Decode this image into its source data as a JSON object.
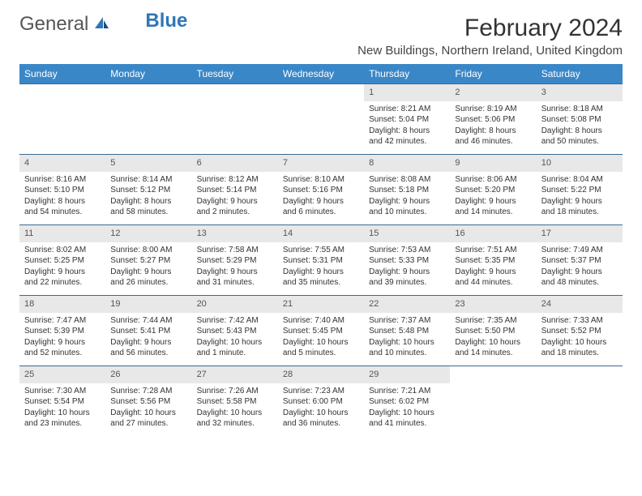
{
  "brand": {
    "part1": "General",
    "part2": "Blue"
  },
  "title": "February 2024",
  "location": "New Buildings, Northern Ireland, United Kingdom",
  "colors": {
    "header_bg": "#3a87c8",
    "header_text": "#ffffff",
    "date_bar_bg": "#e8e8e8",
    "week_border": "#3a6a95",
    "logo_blue": "#2f77b8",
    "body_text": "#333333",
    "page_bg": "#ffffff"
  },
  "typography": {
    "title_fontsize": 30,
    "location_fontsize": 15,
    "dayheader_fontsize": 12,
    "date_fontsize": 11,
    "cell_fontsize": 10
  },
  "layout": {
    "columns": 7,
    "rows": 5,
    "cell_min_height": 86
  },
  "day_names": [
    "Sunday",
    "Monday",
    "Tuesday",
    "Wednesday",
    "Thursday",
    "Friday",
    "Saturday"
  ],
  "weeks": [
    [
      null,
      null,
      null,
      null,
      {
        "date": "1",
        "sunrise": "Sunrise: 8:21 AM",
        "sunset": "Sunset: 5:04 PM",
        "daylight": "Daylight: 8 hours and 42 minutes."
      },
      {
        "date": "2",
        "sunrise": "Sunrise: 8:19 AM",
        "sunset": "Sunset: 5:06 PM",
        "daylight": "Daylight: 8 hours and 46 minutes."
      },
      {
        "date": "3",
        "sunrise": "Sunrise: 8:18 AM",
        "sunset": "Sunset: 5:08 PM",
        "daylight": "Daylight: 8 hours and 50 minutes."
      }
    ],
    [
      {
        "date": "4",
        "sunrise": "Sunrise: 8:16 AM",
        "sunset": "Sunset: 5:10 PM",
        "daylight": "Daylight: 8 hours and 54 minutes."
      },
      {
        "date": "5",
        "sunrise": "Sunrise: 8:14 AM",
        "sunset": "Sunset: 5:12 PM",
        "daylight": "Daylight: 8 hours and 58 minutes."
      },
      {
        "date": "6",
        "sunrise": "Sunrise: 8:12 AM",
        "sunset": "Sunset: 5:14 PM",
        "daylight": "Daylight: 9 hours and 2 minutes."
      },
      {
        "date": "7",
        "sunrise": "Sunrise: 8:10 AM",
        "sunset": "Sunset: 5:16 PM",
        "daylight": "Daylight: 9 hours and 6 minutes."
      },
      {
        "date": "8",
        "sunrise": "Sunrise: 8:08 AM",
        "sunset": "Sunset: 5:18 PM",
        "daylight": "Daylight: 9 hours and 10 minutes."
      },
      {
        "date": "9",
        "sunrise": "Sunrise: 8:06 AM",
        "sunset": "Sunset: 5:20 PM",
        "daylight": "Daylight: 9 hours and 14 minutes."
      },
      {
        "date": "10",
        "sunrise": "Sunrise: 8:04 AM",
        "sunset": "Sunset: 5:22 PM",
        "daylight": "Daylight: 9 hours and 18 minutes."
      }
    ],
    [
      {
        "date": "11",
        "sunrise": "Sunrise: 8:02 AM",
        "sunset": "Sunset: 5:25 PM",
        "daylight": "Daylight: 9 hours and 22 minutes."
      },
      {
        "date": "12",
        "sunrise": "Sunrise: 8:00 AM",
        "sunset": "Sunset: 5:27 PM",
        "daylight": "Daylight: 9 hours and 26 minutes."
      },
      {
        "date": "13",
        "sunrise": "Sunrise: 7:58 AM",
        "sunset": "Sunset: 5:29 PM",
        "daylight": "Daylight: 9 hours and 31 minutes."
      },
      {
        "date": "14",
        "sunrise": "Sunrise: 7:55 AM",
        "sunset": "Sunset: 5:31 PM",
        "daylight": "Daylight: 9 hours and 35 minutes."
      },
      {
        "date": "15",
        "sunrise": "Sunrise: 7:53 AM",
        "sunset": "Sunset: 5:33 PM",
        "daylight": "Daylight: 9 hours and 39 minutes."
      },
      {
        "date": "16",
        "sunrise": "Sunrise: 7:51 AM",
        "sunset": "Sunset: 5:35 PM",
        "daylight": "Daylight: 9 hours and 44 minutes."
      },
      {
        "date": "17",
        "sunrise": "Sunrise: 7:49 AM",
        "sunset": "Sunset: 5:37 PM",
        "daylight": "Daylight: 9 hours and 48 minutes."
      }
    ],
    [
      {
        "date": "18",
        "sunrise": "Sunrise: 7:47 AM",
        "sunset": "Sunset: 5:39 PM",
        "daylight": "Daylight: 9 hours and 52 minutes."
      },
      {
        "date": "19",
        "sunrise": "Sunrise: 7:44 AM",
        "sunset": "Sunset: 5:41 PM",
        "daylight": "Daylight: 9 hours and 56 minutes."
      },
      {
        "date": "20",
        "sunrise": "Sunrise: 7:42 AM",
        "sunset": "Sunset: 5:43 PM",
        "daylight": "Daylight: 10 hours and 1 minute."
      },
      {
        "date": "21",
        "sunrise": "Sunrise: 7:40 AM",
        "sunset": "Sunset: 5:45 PM",
        "daylight": "Daylight: 10 hours and 5 minutes."
      },
      {
        "date": "22",
        "sunrise": "Sunrise: 7:37 AM",
        "sunset": "Sunset: 5:48 PM",
        "daylight": "Daylight: 10 hours and 10 minutes."
      },
      {
        "date": "23",
        "sunrise": "Sunrise: 7:35 AM",
        "sunset": "Sunset: 5:50 PM",
        "daylight": "Daylight: 10 hours and 14 minutes."
      },
      {
        "date": "24",
        "sunrise": "Sunrise: 7:33 AM",
        "sunset": "Sunset: 5:52 PM",
        "daylight": "Daylight: 10 hours and 18 minutes."
      }
    ],
    [
      {
        "date": "25",
        "sunrise": "Sunrise: 7:30 AM",
        "sunset": "Sunset: 5:54 PM",
        "daylight": "Daylight: 10 hours and 23 minutes."
      },
      {
        "date": "26",
        "sunrise": "Sunrise: 7:28 AM",
        "sunset": "Sunset: 5:56 PM",
        "daylight": "Daylight: 10 hours and 27 minutes."
      },
      {
        "date": "27",
        "sunrise": "Sunrise: 7:26 AM",
        "sunset": "Sunset: 5:58 PM",
        "daylight": "Daylight: 10 hours and 32 minutes."
      },
      {
        "date": "28",
        "sunrise": "Sunrise: 7:23 AM",
        "sunset": "Sunset: 6:00 PM",
        "daylight": "Daylight: 10 hours and 36 minutes."
      },
      {
        "date": "29",
        "sunrise": "Sunrise: 7:21 AM",
        "sunset": "Sunset: 6:02 PM",
        "daylight": "Daylight: 10 hours and 41 minutes."
      },
      null,
      null
    ]
  ]
}
